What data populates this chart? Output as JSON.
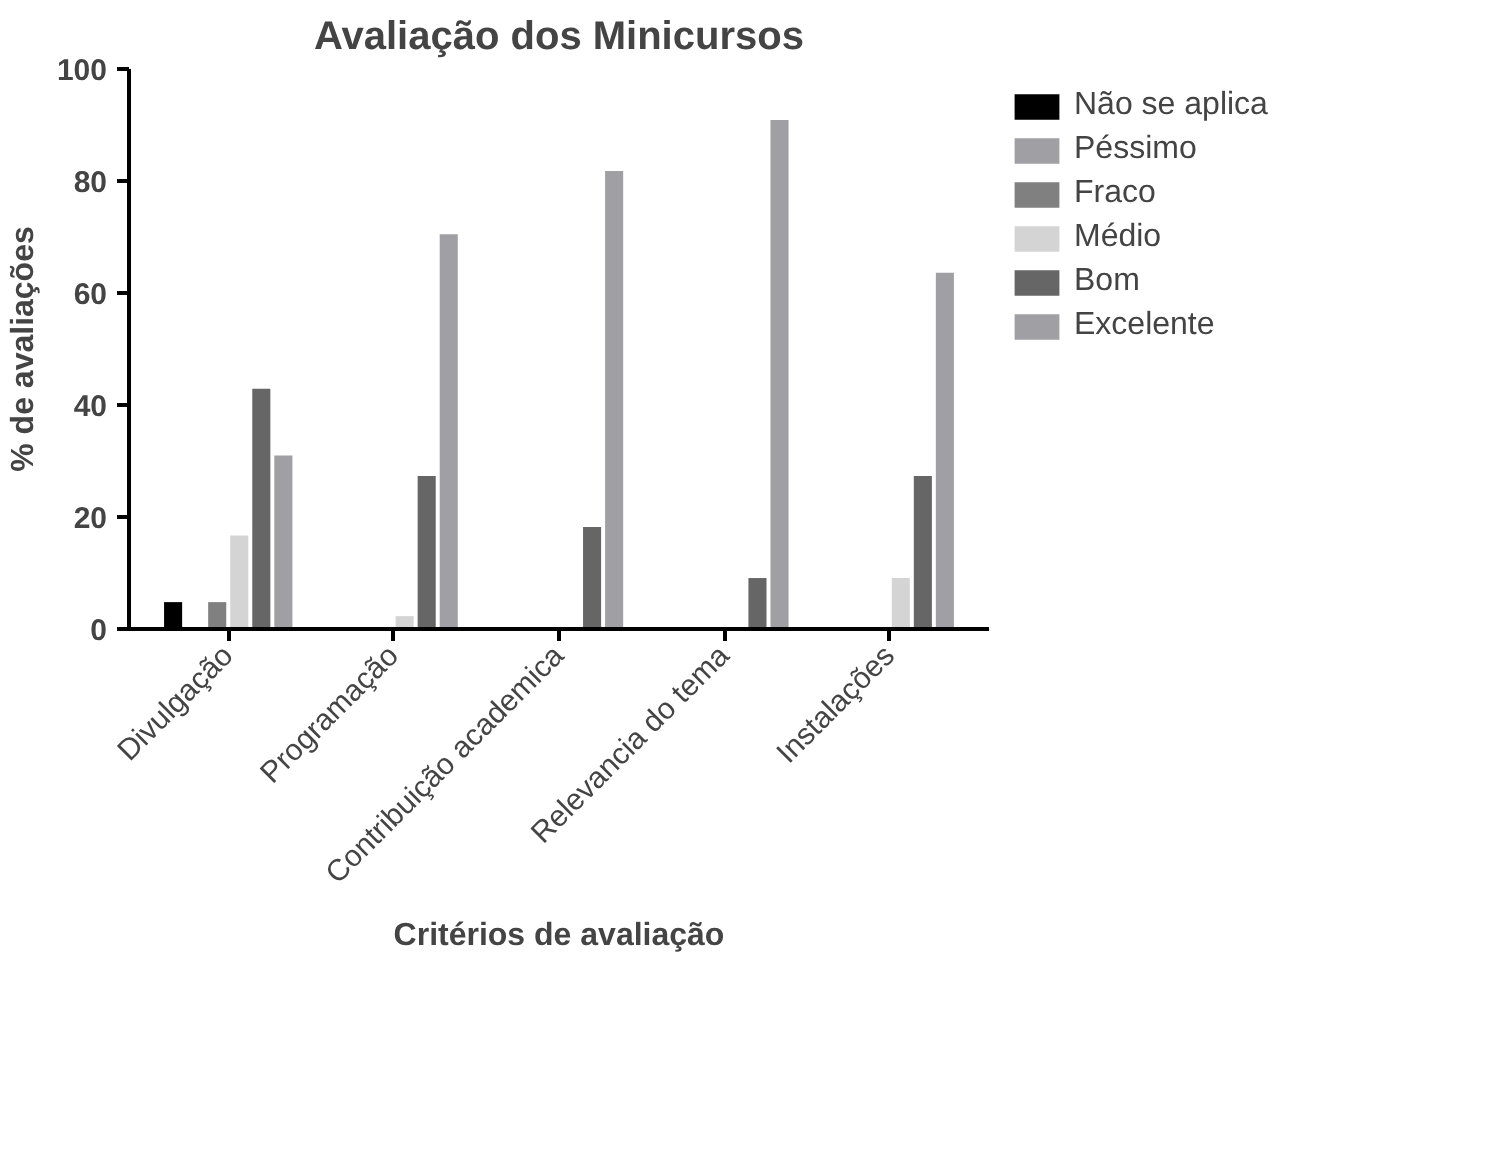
{
  "chart_data": {
    "type": "bar",
    "title": "Avaliação dos Minicursos",
    "xlabel": "Critérios de avaliação",
    "ylabel": "% de avaliações",
    "categories": [
      "Divulgação",
      "Programação",
      "Contribuição academica",
      "Relevancia do tema",
      "Instalações"
    ],
    "series": [
      {
        "name": "Não se aplica",
        "color": "#000000",
        "values": [
          4.8,
          0,
          0,
          0,
          0
        ]
      },
      {
        "name": "Péssimo",
        "color": "#a0a0a4",
        "values": [
          0,
          0,
          0,
          0,
          0
        ]
      },
      {
        "name": "Fraco",
        "color": "#808080",
        "values": [
          4.8,
          0,
          0,
          0,
          0
        ]
      },
      {
        "name": "Médio",
        "color": "#d4d4d4",
        "values": [
          16.7,
          2.3,
          0,
          0,
          9.1
        ]
      },
      {
        "name": "Bom",
        "color": "#666666",
        "values": [
          42.9,
          27.3,
          18.2,
          9.1,
          27.3
        ]
      },
      {
        "name": "Excelente",
        "color": "#a0a0a4",
        "values": [
          31.0,
          70.5,
          81.8,
          90.9,
          63.6
        ]
      }
    ],
    "ylim": [
      0,
      100
    ],
    "yticks": [
      0,
      20,
      40,
      60,
      80,
      100
    ],
    "grid": false,
    "legend": "right"
  }
}
